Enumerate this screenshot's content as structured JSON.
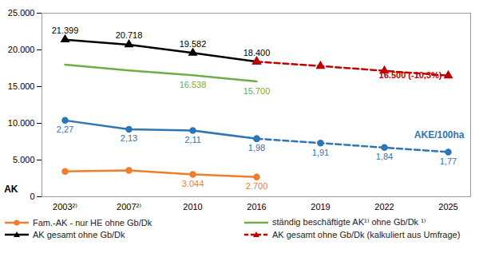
{
  "chart_data": {
    "type": "line",
    "categories": [
      "2003²⁾",
      "2007²⁾",
      "2010",
      "2016",
      "2019",
      "2022",
      "2025"
    ],
    "ylabel": "AK",
    "ylim": [
      0,
      25000
    ],
    "yticks": [
      0,
      {
        "value": 5000,
        "label": "5.000"
      },
      {
        "value": 10000,
        "label": "10.000"
      },
      {
        "value": 15000,
        "label": "15.000"
      },
      {
        "value": 20000,
        "label": "20.000"
      },
      {
        "value": 25000,
        "label": "25.000"
      }
    ],
    "y2lim": [
      1.06,
      3.97
    ],
    "y2ticks": [],
    "grid": false,
    "legend": "bottom",
    "data_labels": true,
    "series": [
      {
        "name": "AK gesamt ohne Gb/Dk",
        "color": "#000000",
        "marker": "triangle",
        "line_style": "solid",
        "values": [
          21399,
          20718,
          19582,
          18400,
          null,
          null,
          null
        ],
        "value_labels": [
          "21.399",
          "20.718",
          "19.582",
          "18.400",
          null,
          null,
          null
        ]
      },
      {
        "name": "AK gesamt ohne Gb/Dk (kalkuliert aus Umfrage)",
        "color": "#c00000",
        "marker": "triangle",
        "line_style": "dashed",
        "values": [
          null,
          null,
          null,
          18400,
          17800,
          17150,
          16500
        ],
        "value_labels": [
          null,
          null,
          null,
          null,
          null,
          null,
          "16.500 (-10,3%)"
        ]
      },
      {
        "name": "ständig beschäftigte AK¹⁾ ohne Gb/Dk ¹⁾",
        "color": "#70ad47",
        "marker": "none",
        "line_style": "solid",
        "values": [
          18000,
          17200,
          16538,
          15700,
          null,
          null,
          null
        ],
        "value_labels": [
          null,
          null,
          "16.538",
          "15.700",
          null,
          null,
          null
        ]
      },
      {
        "name": "Fam.-AK - nur HE ohne Gb/Dk",
        "color": "#ed7d31",
        "marker": "circle",
        "line_style": "solid",
        "values": [
          3450,
          3600,
          3044,
          2700,
          null,
          null,
          null
        ],
        "value_labels": [
          null,
          null,
          "3.044",
          "2.700",
          null,
          null,
          null
        ]
      },
      {
        "name": "AKE/100ha",
        "color": "#2e75b6",
        "marker": "circle",
        "line_style": "solid",
        "axis": "y2",
        "values": [
          2.27,
          2.13,
          2.11,
          1.98,
          null,
          null,
          null
        ],
        "value_labels": [
          "2,27",
          "2,13",
          "2,11",
          "1,98",
          null,
          null,
          null
        ]
      },
      {
        "color": "#2e75b6",
        "marker": "circle",
        "line_style": "dashed",
        "axis": "y2",
        "values": [
          null,
          null,
          null,
          1.98,
          1.91,
          1.84,
          1.77
        ],
        "value_labels": [
          null,
          null,
          null,
          null,
          "1,91",
          "1,84",
          "1,77"
        ]
      }
    ]
  }
}
